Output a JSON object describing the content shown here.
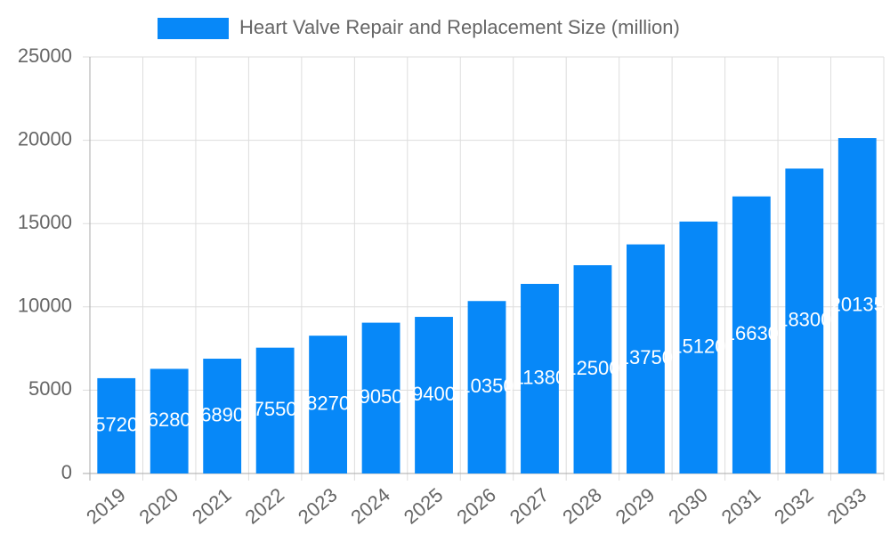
{
  "chart_data": {
    "type": "bar",
    "legend_label": "Heart Valve Repair and Replacement Size (million)",
    "categories": [
      "2019",
      "2020",
      "2021",
      "2022",
      "2023",
      "2024",
      "2025",
      "2026",
      "2027",
      "2028",
      "2029",
      "2030",
      "2031",
      "2032",
      "2033"
    ],
    "values": [
      5720,
      6280,
      6890,
      7550,
      8270,
      9050,
      9400,
      10350,
      11380,
      12500,
      13750,
      15120,
      16630,
      18300,
      20135
    ],
    "color": "#0788f8",
    "ylim": [
      0,
      25000
    ],
    "yticks": [
      0,
      5000,
      10000,
      15000,
      20000,
      25000
    ],
    "grid": true
  }
}
